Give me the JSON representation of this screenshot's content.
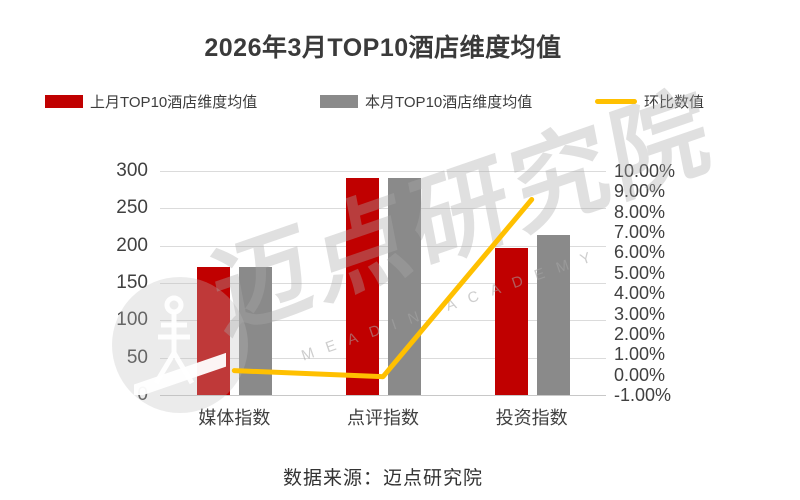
{
  "title": "2026年3月TOP10酒店维度均值",
  "legend": [
    {
      "label": "上月TOP10酒店维度均值",
      "color": "#C00000",
      "type": "bar"
    },
    {
      "label": "本月TOP10酒店维度均值",
      "color": "#8A8A8A",
      "type": "bar"
    },
    {
      "label": "环比数值",
      "color": "#FFC000",
      "type": "line"
    }
  ],
  "chart_data": {
    "type": "bar",
    "subtype": "grouped-bars-with-line-overlay",
    "title": "2026年3月TOP10酒店维度均值",
    "categories": [
      "媒体指数",
      "点评指数",
      "投资指数"
    ],
    "series": [
      {
        "name": "上月TOP10酒店维度均值",
        "type": "bar",
        "axis": "left",
        "color": "#C00000",
        "values": [
          171,
          291,
          197
        ]
      },
      {
        "name": "本月TOP10酒店维度均值",
        "type": "bar",
        "axis": "left",
        "color": "#8A8A8A",
        "values": [
          171,
          291,
          214
        ]
      },
      {
        "name": "环比数值",
        "type": "line",
        "axis": "right",
        "color": "#FFC000",
        "values_percent": [
          0.2,
          -0.1,
          8.6
        ]
      }
    ],
    "left_axis": {
      "min": 0,
      "max": 300,
      "step": 50,
      "ticks": [
        "300",
        "250",
        "200",
        "150",
        "100",
        "50",
        "0"
      ]
    },
    "right_axis": {
      "min": -1,
      "max": 10,
      "step": 1,
      "ticks": [
        "10.00%",
        "9.00%",
        "8.00%",
        "7.00%",
        "6.00%",
        "5.00%",
        "4.00%",
        "3.00%",
        "2.00%",
        "1.00%",
        "0.00%",
        "-1.00%"
      ]
    },
    "grid": true,
    "legend_position": "top",
    "gridline_color": "#dbdbdb"
  },
  "watermark": {
    "big_text": "迈点研究院",
    "small_text": "MEADIN ACADEMY"
  },
  "source": {
    "text": "数据来源：迈点研究院"
  }
}
